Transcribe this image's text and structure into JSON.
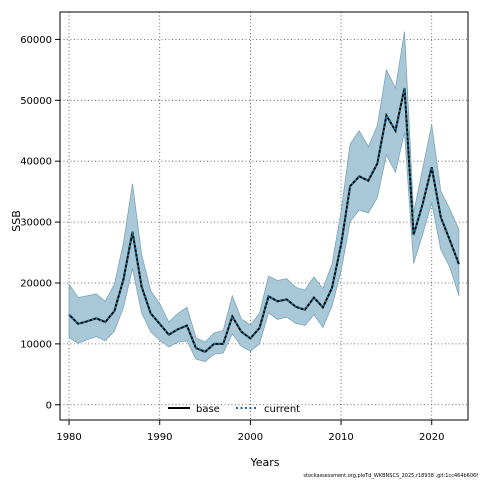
{
  "chart_data": {
    "type": "line",
    "title": "",
    "xlabel": "Years",
    "ylabel": "SSB",
    "xlim": [
      1979,
      2024
    ],
    "ylim": [
      -2500,
      64500
    ],
    "x_ticks": [
      1980,
      1990,
      2000,
      2010,
      2020
    ],
    "y_ticks": [
      0,
      10000,
      20000,
      30000,
      40000,
      50000,
      60000
    ],
    "grid": true,
    "legend_position": "bottom-center",
    "x": [
      1980,
      1981,
      1982,
      1983,
      1984,
      1985,
      1986,
      1987,
      1988,
      1989,
      1990,
      1991,
      1992,
      1993,
      1994,
      1995,
      1996,
      1997,
      1998,
      1999,
      2000,
      2001,
      2002,
      2003,
      2004,
      2005,
      2006,
      2007,
      2008,
      2009,
      2010,
      2011,
      2012,
      2013,
      2014,
      2015,
      2016,
      2017,
      2018,
      2019,
      2020,
      2021,
      2022,
      2023
    ],
    "series": [
      {
        "name": "base",
        "color": "#000000",
        "line_style": "solid",
        "values": [
          14800,
          13300,
          13700,
          14200,
          13600,
          15400,
          20600,
          28400,
          19400,
          15000,
          13300,
          11500,
          12400,
          13000,
          9300,
          8700,
          10000,
          10000,
          14500,
          12000,
          10900,
          12600,
          17800,
          17000,
          17300,
          16100,
          15600,
          17600,
          16000,
          19200,
          26300,
          35900,
          37500,
          36800,
          39600,
          47500,
          45000,
          52000,
          27900,
          33000,
          39000,
          30800,
          27000,
          23100
        ]
      },
      {
        "name": "current",
        "color": "#1a6e8e",
        "line_style": "dotted",
        "values": [
          14800,
          13300,
          13700,
          14200,
          13600,
          15400,
          20600,
          28400,
          19400,
          15000,
          13300,
          11500,
          12400,
          13000,
          9300,
          8700,
          10000,
          10000,
          14500,
          12000,
          10900,
          12600,
          17800,
          17000,
          17300,
          16100,
          15600,
          17600,
          16000,
          19200,
          26300,
          35900,
          37500,
          36800,
          39600,
          47500,
          45000,
          52000,
          27900,
          33000,
          39000,
          30800,
          27000,
          23100
        ]
      }
    ],
    "interval": {
      "color": "#a9c8d7",
      "lower": [
        11000,
        10100,
        10700,
        11200,
        10500,
        12100,
        16000,
        22400,
        15100,
        12000,
        10600,
        9500,
        10300,
        10500,
        7500,
        7100,
        8300,
        8500,
        11700,
        9600,
        8800,
        10000,
        15100,
        14000,
        14400,
        13400,
        13000,
        14800,
        12700,
        16200,
        22000,
        30100,
        32000,
        31500,
        34000,
        41000,
        38200,
        44800,
        23200,
        28000,
        33200,
        25500,
        22600,
        17900
      ],
      "upper": [
        19800,
        17600,
        17900,
        18200,
        17000,
        19800,
        26600,
        36300,
        24700,
        18700,
        16600,
        13600,
        15000,
        16000,
        11000,
        10300,
        11800,
        12200,
        17900,
        14100,
        13100,
        15000,
        21100,
        20400,
        20700,
        19300,
        18800,
        21000,
        19100,
        23100,
        31700,
        42800,
        45000,
        42400,
        45800,
        55000,
        52000,
        61300,
        31500,
        38800,
        46000,
        35100,
        32100,
        28800
      ]
    }
  },
  "footer_text": "stockassessment.org,pleTd_WKBNSCS_2025,r18938 ,git:1cc464b606f"
}
